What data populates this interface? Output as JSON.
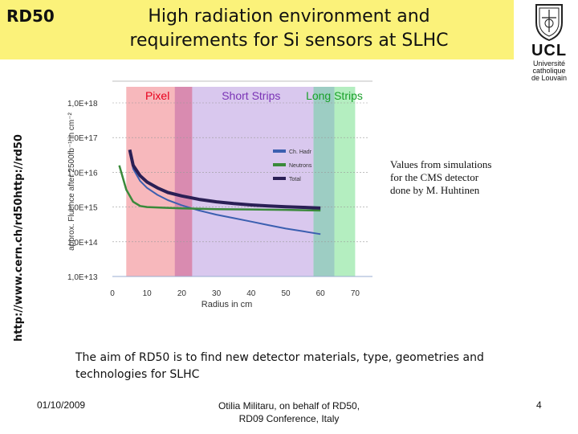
{
  "header": {
    "tag": "RD50",
    "title": "High radiation environment and requirements for Si sensors at SLHC"
  },
  "logo": {
    "name": "UCL",
    "line1": "Université",
    "line2": "catholique",
    "line3": "de Louvain"
  },
  "side_url": "http://www.cern.ch/rd50http://rd50",
  "chart_data": {
    "type": "line",
    "title": "",
    "xlabel": "Radius in cm",
    "ylabel": "approx. Fluence after 2500fb⁻¹ in cm⁻²",
    "xlim": [
      0,
      75
    ],
    "ylim_log10": [
      13,
      18
    ],
    "y_scale": "log",
    "x_ticks": [
      0,
      10,
      20,
      30,
      40,
      50,
      60,
      70
    ],
    "x_tick_labels": [
      "0",
      "10",
      "20",
      "30",
      "40",
      "50",
      "60",
      "70"
    ],
    "y_ticks_log10": [
      13,
      14,
      15,
      16,
      17,
      18
    ],
    "y_tick_labels": [
      "1,0E+13",
      "1,0E+14",
      "1,0E+15",
      "1,0E+16",
      "1,0E+17",
      "1,0E+18"
    ],
    "grid": "horizontal",
    "regions": [
      {
        "label": "Pixel",
        "x": [
          4,
          22
        ],
        "color": "#f7b8bc",
        "label_color": "#e8001c"
      },
      {
        "label": "Short Strips",
        "x": [
          22,
          58
        ],
        "color": "#d9c8ee",
        "label_color": "#7a33b5"
      },
      {
        "label": "Long Strips",
        "x": [
          58,
          70
        ],
        "color": "#b4eec0",
        "label_color": "#1aa02a"
      }
    ],
    "overlaps": [
      {
        "x": [
          18,
          23
        ],
        "color": "#d98bb0"
      },
      {
        "x": [
          58,
          64
        ],
        "color": "#9dcdc3"
      }
    ],
    "legend_position": "right",
    "series": [
      {
        "name": "Ch. Hadr",
        "color": "#3b5fb0",
        "x": [
          5,
          6,
          8,
          10,
          13,
          16,
          20,
          25,
          30,
          35,
          40,
          45,
          50,
          55,
          60
        ],
        "y_log10": [
          16.6,
          16.1,
          15.75,
          15.55,
          15.35,
          15.2,
          15.05,
          14.9,
          14.78,
          14.68,
          14.58,
          14.48,
          14.38,
          14.3,
          14.22
        ]
      },
      {
        "name": "Neutrons",
        "color": "#3a8a3a",
        "x": [
          2,
          4,
          6,
          8,
          10,
          15,
          20,
          30,
          40,
          50,
          60
        ],
        "y_log10": [
          16.2,
          15.5,
          15.15,
          15.03,
          15.0,
          14.98,
          14.96,
          14.94,
          14.93,
          14.92,
          14.9
        ]
      },
      {
        "name": "Total",
        "color": "#2a1f55",
        "x": [
          5,
          6,
          8,
          10,
          13,
          16,
          20,
          25,
          30,
          35,
          40,
          45,
          50,
          55,
          60
        ],
        "y_log10": [
          16.65,
          16.2,
          15.9,
          15.72,
          15.55,
          15.42,
          15.32,
          15.22,
          15.15,
          15.1,
          15.06,
          15.03,
          15.01,
          14.99,
          14.97
        ]
      }
    ]
  },
  "note": "Values from simulations\nfor the CMS detector\ndone by M. Huhtinen",
  "aim": "The aim of RD50 is to find new detector materials, type, geometries and technologies for SLHC",
  "footer": {
    "date": "01/10/2009",
    "author": "Otilia Militaru, on behalf of RD50,\nRD09 Conference, Italy",
    "page": "4"
  }
}
